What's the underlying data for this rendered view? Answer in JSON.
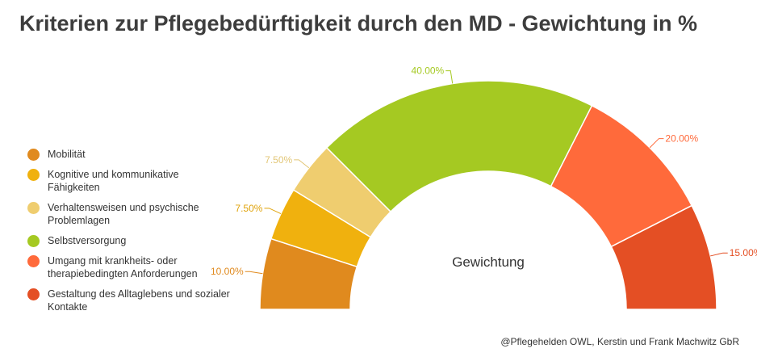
{
  "title": "Kriterien zur Pflegebedürftigkeit durch den MD - Gewichtung in %",
  "footer": "@Pflegehelden OWL, Kerstin und Frank Machwitz GbR",
  "chart_data": {
    "type": "pie",
    "variant": "semi-donut",
    "title": "Kriterien zur Pflegebedürftigkeit durch den MD - Gewichtung in %",
    "center_label": "Gewichtung",
    "legend_position": "left",
    "categories": [
      "Mobilität",
      "Kognitive und kommunikative Fähigkeiten",
      "Verhaltensweisen und psychische Problemlagen",
      "Selbstversorgung",
      "Umgang mit krankheits- oder therapiebedingten Anforderungen",
      "Gestaltung des Alltaglebens und sozialer Kontakte"
    ],
    "legend_labels": [
      "Mobilität",
      "Kognitive und kommunikative\nFähigkeiten",
      "Verhaltensweisen und psychische\nProblemlagen",
      "Selbstversorgung",
      "Umgang mit krankheits- oder\ntherapiebedingten Anforderungen",
      "Gestaltung des Alltaglebens und sozialer\nKontakte"
    ],
    "values": [
      10,
      7.5,
      7.5,
      40,
      20,
      15
    ],
    "value_labels": [
      "10.00%",
      "7.50%",
      "7.50%",
      "40.00%",
      "20.00%",
      "15.00%"
    ],
    "colors": [
      "#e08a1e",
      "#f0b10e",
      "#efcd6f",
      "#a5c922",
      "#ff6a3b",
      "#e44f24"
    ],
    "label_colors": [
      "#e08a1e",
      "#e0a30a",
      "#e2c676",
      "#a5c922",
      "#ff6a3b",
      "#e44f24"
    ]
  }
}
